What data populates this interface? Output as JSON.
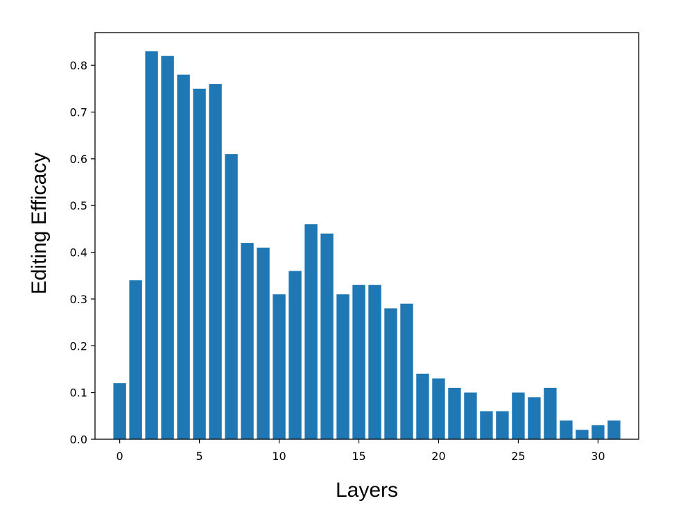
{
  "chart_data": {
    "type": "bar",
    "title": "",
    "xlabel": "Layers",
    "ylabel": "Editing Efficacy",
    "x": [
      0,
      1,
      2,
      3,
      4,
      5,
      6,
      7,
      8,
      9,
      10,
      11,
      12,
      13,
      14,
      15,
      16,
      17,
      18,
      19,
      20,
      21,
      22,
      23,
      24,
      25,
      26,
      27,
      28,
      29,
      30,
      31
    ],
    "values": [
      0.12,
      0.34,
      0.83,
      0.82,
      0.78,
      0.75,
      0.76,
      0.61,
      0.42,
      0.41,
      0.31,
      0.36,
      0.46,
      0.44,
      0.31,
      0.33,
      0.33,
      0.28,
      0.29,
      0.14,
      0.13,
      0.11,
      0.1,
      0.06,
      0.06,
      0.1,
      0.09,
      0.11,
      0.04,
      0.02,
      0.03,
      0.04
    ],
    "xlim": [
      -1.55,
      32.55
    ],
    "ylim": [
      0,
      0.87
    ],
    "xticks": [
      0,
      5,
      10,
      15,
      20,
      25,
      30
    ],
    "xtick_labels": [
      "0",
      "5",
      "10",
      "15",
      "20",
      "25",
      "30"
    ],
    "yticks": [
      0.0,
      0.1,
      0.2,
      0.3,
      0.4,
      0.5,
      0.6,
      0.7,
      0.8
    ],
    "ytick_labels": [
      "0.0",
      "0.1",
      "0.2",
      "0.3",
      "0.4",
      "0.5",
      "0.6",
      "0.7",
      "0.8"
    ],
    "grid": false,
    "legend": "none",
    "bar_color": "#1f77b4"
  }
}
